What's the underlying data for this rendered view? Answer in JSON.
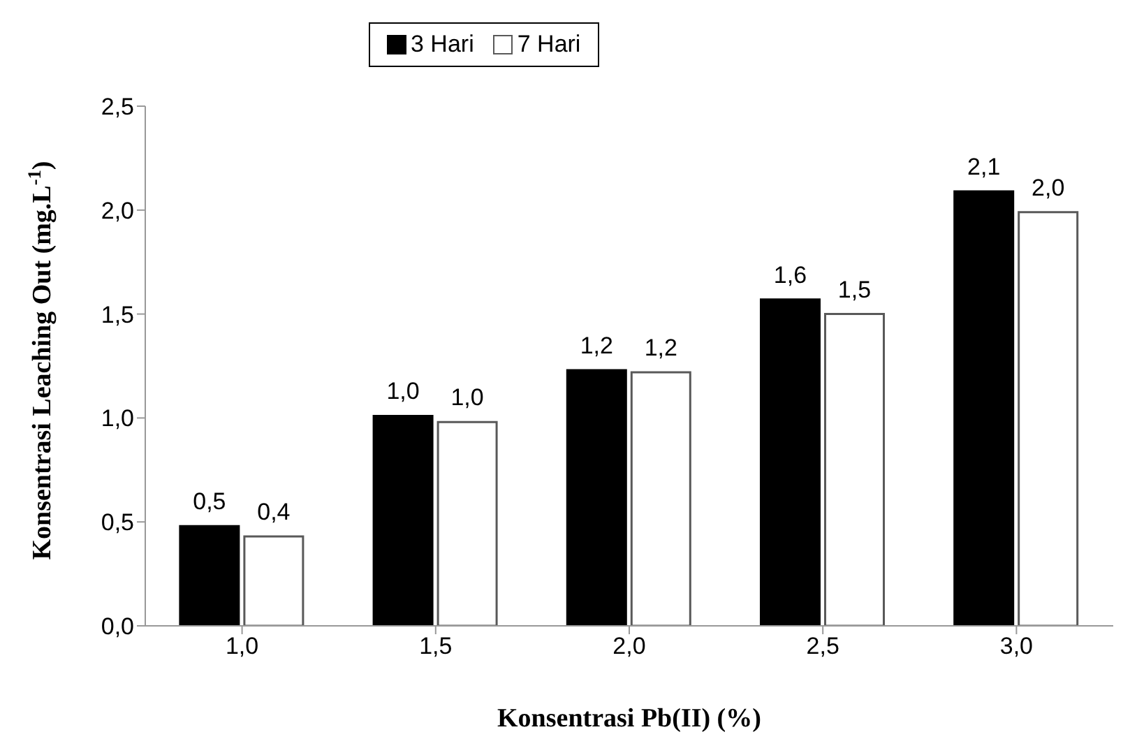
{
  "chart_data": {
    "type": "bar",
    "xlabel": "Konsentrasi Pb(II) (%)",
    "ylabel": "Konsentrasi Leaching Out (mg.L$^{-1}$)",
    "categories": [
      "1,0",
      "1,5",
      "2,0",
      "2,5",
      "3,0"
    ],
    "series": [
      {
        "name": "3 Hari",
        "color": "#000000",
        "values": [
          0.48,
          1.01,
          1.23,
          1.57,
          2.09
        ],
        "value_labels": [
          "0,5",
          "1,0",
          "1,2",
          "1,6",
          "2,1"
        ]
      },
      {
        "name": "7 Hari",
        "color": "#ffffff",
        "values": [
          0.43,
          0.98,
          1.22,
          1.5,
          1.99
        ],
        "value_labels": [
          "0,4",
          "1,0",
          "1,2",
          "1,5",
          "2,0"
        ]
      }
    ],
    "ylim": [
      0,
      2.5
    ],
    "yticks": [
      {
        "value": 0,
        "label": "0,0"
      },
      {
        "value": 0.5,
        "label": "0,5"
      },
      {
        "value": 1,
        "label": "1,0"
      },
      {
        "value": 1.5,
        "label": "1,5"
      },
      {
        "value": 2,
        "label": "2,0"
      },
      {
        "value": 2.5,
        "label": "2,5"
      }
    ],
    "legend": "top",
    "grid": false
  }
}
